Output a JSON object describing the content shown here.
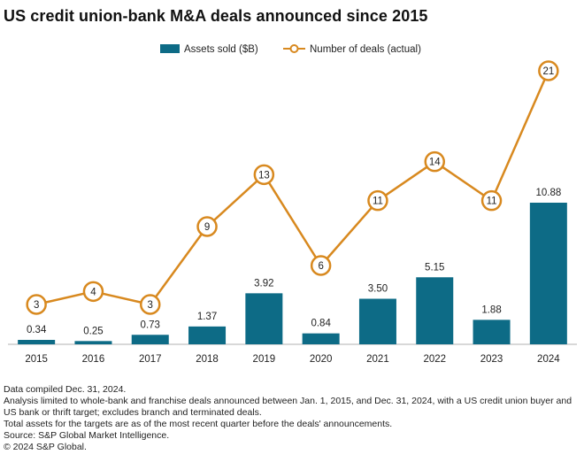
{
  "title": "US credit union-bank M&A deals announced since 2015",
  "legend": {
    "bars_label": "Assets sold ($B)",
    "line_label": "Number of deals (actual)"
  },
  "colors": {
    "bar": "#0d6b86",
    "line": "#d8891f",
    "axis": "#b0b0b0",
    "text": "#1f1f1f"
  },
  "chart_data": {
    "type": "bar",
    "title": "US credit union-bank M&A deals announced since 2015",
    "categories": [
      "2015",
      "2016",
      "2017",
      "2018",
      "2019",
      "2020",
      "2021",
      "2022",
      "2023",
      "2024"
    ],
    "series": [
      {
        "name": "Assets sold ($B)",
        "type": "bar",
        "values": [
          0.34,
          0.25,
          0.73,
          1.37,
          3.92,
          0.84,
          3.5,
          5.15,
          1.88,
          10.88
        ],
        "labels": [
          "0.34",
          "0.25",
          "0.73",
          "1.37",
          "3.92",
          "0.84",
          "3.50",
          "5.15",
          "1.88",
          "10.88"
        ]
      },
      {
        "name": "Number of deals (actual)",
        "type": "line",
        "values": [
          3,
          4,
          3,
          9,
          13,
          6,
          11,
          14,
          11,
          21
        ],
        "labels": [
          "3",
          "4",
          "3",
          "9",
          "13",
          "6",
          "11",
          "14",
          "11",
          "21"
        ]
      }
    ],
    "grid": false,
    "legend_position": "top-center"
  },
  "notes": [
    "Data compiled Dec. 31, 2024.",
    "Analysis limited to whole-bank and franchise deals announced between Jan. 1, 2015, and Dec. 31, 2024, with a US credit union buyer and US bank or thrift target; excludes branch and terminated deals.",
    "Total assets for the targets are as of the most recent quarter before the deals' announcements.",
    "Source: S&P Global Market Intelligence.",
    "© 2024 S&P Global."
  ]
}
